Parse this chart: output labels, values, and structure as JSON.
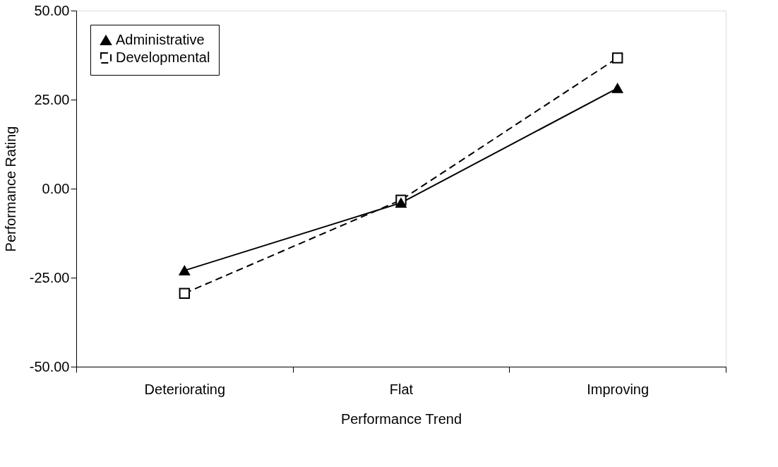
{
  "chart_data": {
    "type": "line",
    "xlabel": "Performance Trend",
    "ylabel": "Performance Rating",
    "categories": [
      "Deteriorating",
      "Flat",
      "Improving"
    ],
    "series": [
      {
        "name": "Administrative",
        "color": "#000000",
        "values": [
          -23.0,
          -4.0,
          28.2
        ],
        "marker": "triangle",
        "line_style": "solid"
      },
      {
        "name": "Developmental",
        "color": "#000000",
        "values": [
          -29.4,
          -3.2,
          36.7
        ],
        "marker": "square",
        "line_style": "dashed"
      }
    ],
    "ylim": [
      -50,
      50
    ],
    "yticks": [
      {
        "value": -50,
        "label": "-50.00"
      },
      {
        "value": -25,
        "label": "-25.00"
      },
      {
        "value": 0,
        "label": "0.00"
      },
      {
        "value": 25,
        "label": "25.00"
      },
      {
        "value": 50,
        "label": "50.00"
      }
    ],
    "grid": false,
    "legend": "top left"
  }
}
